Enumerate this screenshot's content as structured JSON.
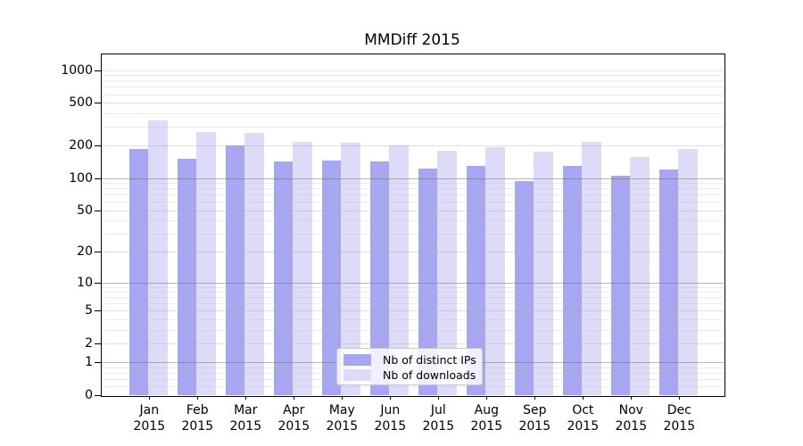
{
  "chart_data": {
    "type": "bar",
    "title": "MMDiff 2015",
    "categories": [
      "Jan 2015",
      "Feb 2015",
      "Mar 2015",
      "Apr 2015",
      "May 2015",
      "Jun 2015",
      "Jul 2015",
      "Aug 2015",
      "Sep 2015",
      "Oct 2015",
      "Nov 2015",
      "Dec 2015"
    ],
    "series": [
      {
        "name": "Nb of distinct IPs",
        "color": "#a6a6f2",
        "values": [
          185,
          150,
          201,
          143,
          146,
          143,
          122,
          130,
          94,
          130,
          105,
          120
        ]
      },
      {
        "name": "Nb of downloads",
        "color": "#dcdcf8",
        "values": [
          345,
          267,
          264,
          216,
          212,
          202,
          179,
          194,
          176,
          217,
          158,
          186
        ]
      }
    ],
    "y_axis": {
      "scale": "log1p",
      "ticks": [
        0,
        1,
        2,
        5,
        10,
        20,
        50,
        100,
        200,
        500,
        1000
      ],
      "top_value": 1423
    },
    "xlabel": "",
    "ylabel": "",
    "grid": true,
    "legend": {
      "position": "lower-center"
    }
  }
}
